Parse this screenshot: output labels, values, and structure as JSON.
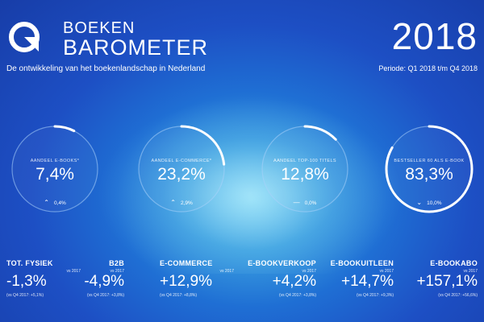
{
  "header": {
    "brand_top": "BOEKEN",
    "brand_bottom": "BAROMETER",
    "subtitle": "De ontwikkeling van het boekenlandschap in Nederland",
    "year": "2018",
    "period": "Periode: Q1 2018 t/m Q4 2018",
    "logo_icon": "magnifier-logo-icon"
  },
  "gauges": [
    {
      "label": "AANDEEL E-BOOKS*",
      "value": "7,4%",
      "change": "0,4%",
      "direction": "up",
      "arrow": "⌃",
      "fill": 0.074
    },
    {
      "label": "AANDEEL E-COMMERCE*",
      "value": "23,2%",
      "change": "2,9%",
      "direction": "up",
      "arrow": "⌃",
      "fill": 0.232
    },
    {
      "label": "AANDEEL TOP-100 TITELS",
      "value": "12,8%",
      "change": "0,0%",
      "direction": "flat",
      "arrow": "—",
      "fill": 0.128
    },
    {
      "label": "BESTSELLER 60 ALS E-BOOK",
      "value": "83,3%",
      "change": "10,0%",
      "direction": "down",
      "arrow": "⌄",
      "fill": 0.833
    }
  ],
  "stats": [
    {
      "name": "TOT. FYSIEK",
      "vs": "vs 2017",
      "value": "-1,3%",
      "prev": "(vs Q4 2017: +5,1%)"
    },
    {
      "name": "B2B",
      "vs": "vs 2017",
      "value": "-4,9%",
      "prev": "(vs Q4 2017: +3,8%)"
    },
    {
      "name": "E-COMMERCE",
      "vs": "vs 2017",
      "value": "+12,9%",
      "prev": "(vs Q4 2017: +8,8%)"
    },
    {
      "name": "E-BOOKVERKOOP",
      "vs": "vs 2017",
      "value": "+4,2%",
      "prev": "(vs Q4 2017: +3,8%)"
    },
    {
      "name": "E-BOOKUITLEEN",
      "vs": "vs 2017",
      "value": "+14,7%",
      "prev": "(vs Q4 2017: +9,3%)"
    },
    {
      "name": "E-BOOKABO",
      "vs": "vs 2017",
      "value": "+157,1%",
      "prev": "(vs Q4 2017: +56,6%)"
    }
  ],
  "colors": {
    "background": "#1d4fc4",
    "ring_track": "#7fb6ee",
    "ring_fill": "#ffffff"
  }
}
